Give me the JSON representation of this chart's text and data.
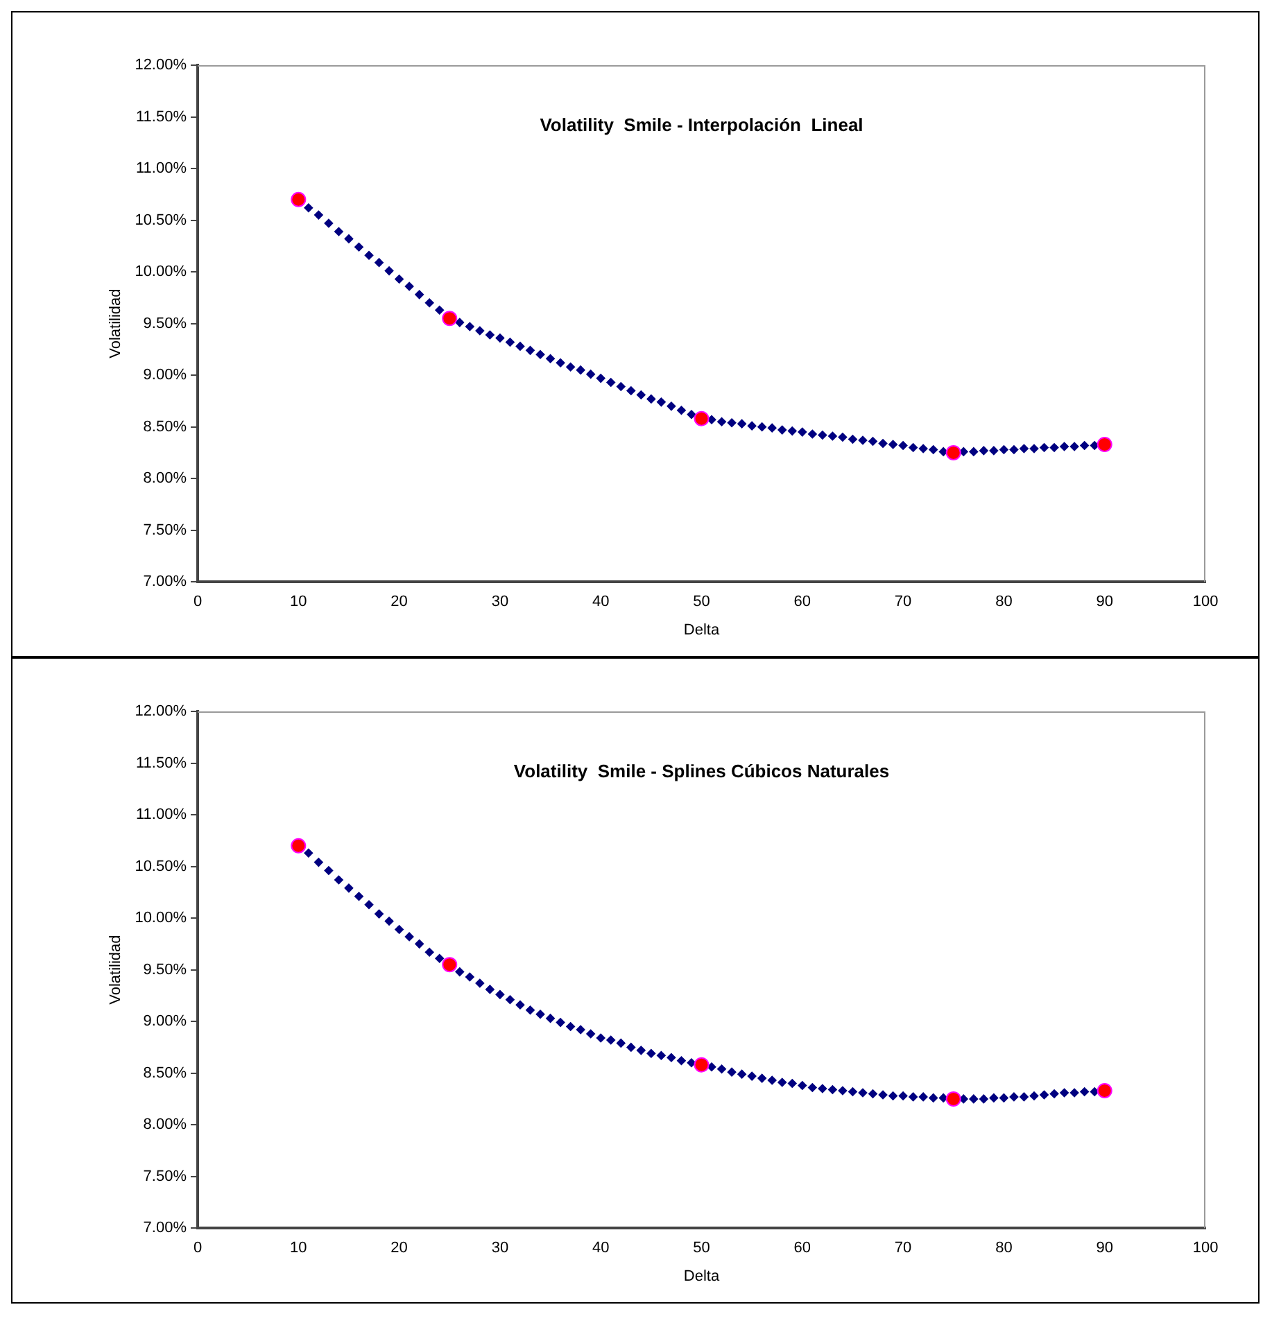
{
  "chart_data": [
    {
      "type": "scatter",
      "title": "Volatility  Smile - Interpolación  Lineal",
      "xlabel": "Delta",
      "ylabel": "Volatilidad",
      "xlim": [
        0,
        100
      ],
      "xticks": [
        0,
        10,
        20,
        30,
        40,
        50,
        60,
        70,
        80,
        90,
        100
      ],
      "ylim": [
        7,
        12
      ],
      "yticks": [
        {
          "value": 7,
          "label": "7.00%"
        },
        {
          "value": 7.5,
          "label": "7.50%"
        },
        {
          "value": 8,
          "label": "8.00%"
        },
        {
          "value": 8.5,
          "label": "8.50%"
        },
        {
          "value": 9,
          "label": "9.00%"
        },
        {
          "value": 9.5,
          "label": "9.50%"
        },
        {
          "value": 10,
          "label": "10.00%"
        },
        {
          "value": 10.5,
          "label": "10.50%"
        },
        {
          "value": 11,
          "label": "11.00%"
        },
        {
          "value": 11.5,
          "label": "11.50%"
        },
        {
          "value": 12,
          "label": "12.00%"
        }
      ],
      "grid": false,
      "legend": false,
      "series": [
        {
          "color": "#000080",
          "marker": "diamond",
          "x": [
            11,
            12,
            13,
            14,
            15,
            16,
            17,
            18,
            19,
            20,
            21,
            22,
            23,
            24,
            25,
            26,
            27,
            28,
            29,
            30,
            31,
            32,
            33,
            34,
            35,
            36,
            37,
            38,
            39,
            40,
            41,
            42,
            43,
            44,
            45,
            46,
            47,
            48,
            49,
            50,
            51,
            52,
            53,
            54,
            55,
            56,
            57,
            58,
            59,
            60,
            61,
            62,
            63,
            64,
            65,
            66,
            67,
            68,
            69,
            70,
            71,
            72,
            73,
            74,
            75,
            76,
            77,
            78,
            79,
            80,
            81,
            82,
            83,
            84,
            85,
            86,
            87,
            88,
            89
          ],
          "values": [
            10.62,
            10.55,
            10.47,
            10.39,
            10.32,
            10.24,
            10.16,
            10.09,
            10.01,
            9.93,
            9.86,
            9.78,
            9.7,
            9.63,
            null,
            9.51,
            9.47,
            9.43,
            9.39,
            9.36,
            9.32,
            9.28,
            9.24,
            9.2,
            9.16,
            9.12,
            9.08,
            9.05,
            9.01,
            8.97,
            8.93,
            8.89,
            8.85,
            8.81,
            8.77,
            8.74,
            8.7,
            8.66,
            8.62,
            null,
            8.57,
            8.55,
            8.54,
            8.53,
            8.51,
            8.5,
            8.49,
            8.47,
            8.46,
            8.45,
            8.43,
            8.42,
            8.41,
            8.4,
            8.38,
            8.37,
            8.36,
            8.34,
            8.33,
            8.32,
            8.3,
            8.29,
            8.28,
            8.26,
            null,
            8.26,
            8.26,
            8.27,
            8.27,
            8.28,
            8.28,
            8.29,
            8.29,
            8.3,
            8.3,
            8.31,
            8.31,
            8.32,
            8.32
          ]
        },
        {
          "color": "#ff0000",
          "marker": "circle",
          "x": [
            10,
            25,
            50,
            75,
            90
          ],
          "values": [
            10.7,
            9.55,
            8.58,
            8.25,
            8.33
          ]
        }
      ]
    },
    {
      "type": "scatter",
      "title": "Volatility  Smile - Splines Cúbicos Naturales",
      "xlabel": "Delta",
      "ylabel": "Volatilidad",
      "xlim": [
        0,
        100
      ],
      "xticks": [
        0,
        10,
        20,
        30,
        40,
        50,
        60,
        70,
        80,
        90,
        100
      ],
      "ylim": [
        7,
        12
      ],
      "yticks": [
        {
          "value": 7,
          "label": "7.00%"
        },
        {
          "value": 7.5,
          "label": "7.50%"
        },
        {
          "value": 8,
          "label": "8.00%"
        },
        {
          "value": 8.5,
          "label": "8.50%"
        },
        {
          "value": 9,
          "label": "9.00%"
        },
        {
          "value": 9.5,
          "label": "9.50%"
        },
        {
          "value": 10,
          "label": "10.00%"
        },
        {
          "value": 10.5,
          "label": "10.50%"
        },
        {
          "value": 11,
          "label": "11.00%"
        },
        {
          "value": 11.5,
          "label": "11.50%"
        },
        {
          "value": 12,
          "label": "12.00%"
        }
      ],
      "grid": false,
      "legend": false,
      "series": [
        {
          "color": "#000080",
          "marker": "diamond",
          "x": [
            11,
            12,
            13,
            14,
            15,
            16,
            17,
            18,
            19,
            20,
            21,
            22,
            23,
            24,
            25,
            26,
            27,
            28,
            29,
            30,
            31,
            32,
            33,
            34,
            35,
            36,
            37,
            38,
            39,
            40,
            41,
            42,
            43,
            44,
            45,
            46,
            47,
            48,
            49,
            50,
            51,
            52,
            53,
            54,
            55,
            56,
            57,
            58,
            59,
            60,
            61,
            62,
            63,
            64,
            65,
            66,
            67,
            68,
            69,
            70,
            71,
            72,
            73,
            74,
            75,
            76,
            77,
            78,
            79,
            80,
            81,
            82,
            83,
            84,
            85,
            86,
            87,
            88,
            89
          ],
          "values": [
            10.63,
            10.54,
            10.46,
            10.37,
            10.29,
            10.21,
            10.13,
            10.04,
            9.97,
            9.89,
            9.82,
            9.75,
            9.67,
            9.61,
            null,
            9.48,
            9.43,
            9.37,
            9.31,
            9.26,
            9.21,
            9.16,
            9.11,
            9.07,
            9.03,
            8.99,
            8.95,
            8.92,
            8.88,
            8.84,
            8.82,
            8.79,
            8.75,
            8.72,
            8.69,
            8.67,
            8.65,
            8.62,
            8.6,
            null,
            8.56,
            8.54,
            8.51,
            8.49,
            8.47,
            8.45,
            8.43,
            8.41,
            8.4,
            8.38,
            8.36,
            8.35,
            8.34,
            8.33,
            8.32,
            8.31,
            8.3,
            8.29,
            8.28,
            8.28,
            8.27,
            8.27,
            8.26,
            8.26,
            null,
            8.25,
            8.25,
            8.25,
            8.26,
            8.26,
            8.27,
            8.27,
            8.28,
            8.29,
            8.3,
            8.31,
            8.31,
            8.32,
            8.32
          ]
        },
        {
          "color": "#ff0000",
          "marker": "circle",
          "x": [
            10,
            25,
            50,
            75,
            90
          ],
          "values": [
            10.7,
            9.55,
            8.58,
            8.25,
            8.33
          ]
        }
      ]
    }
  ]
}
